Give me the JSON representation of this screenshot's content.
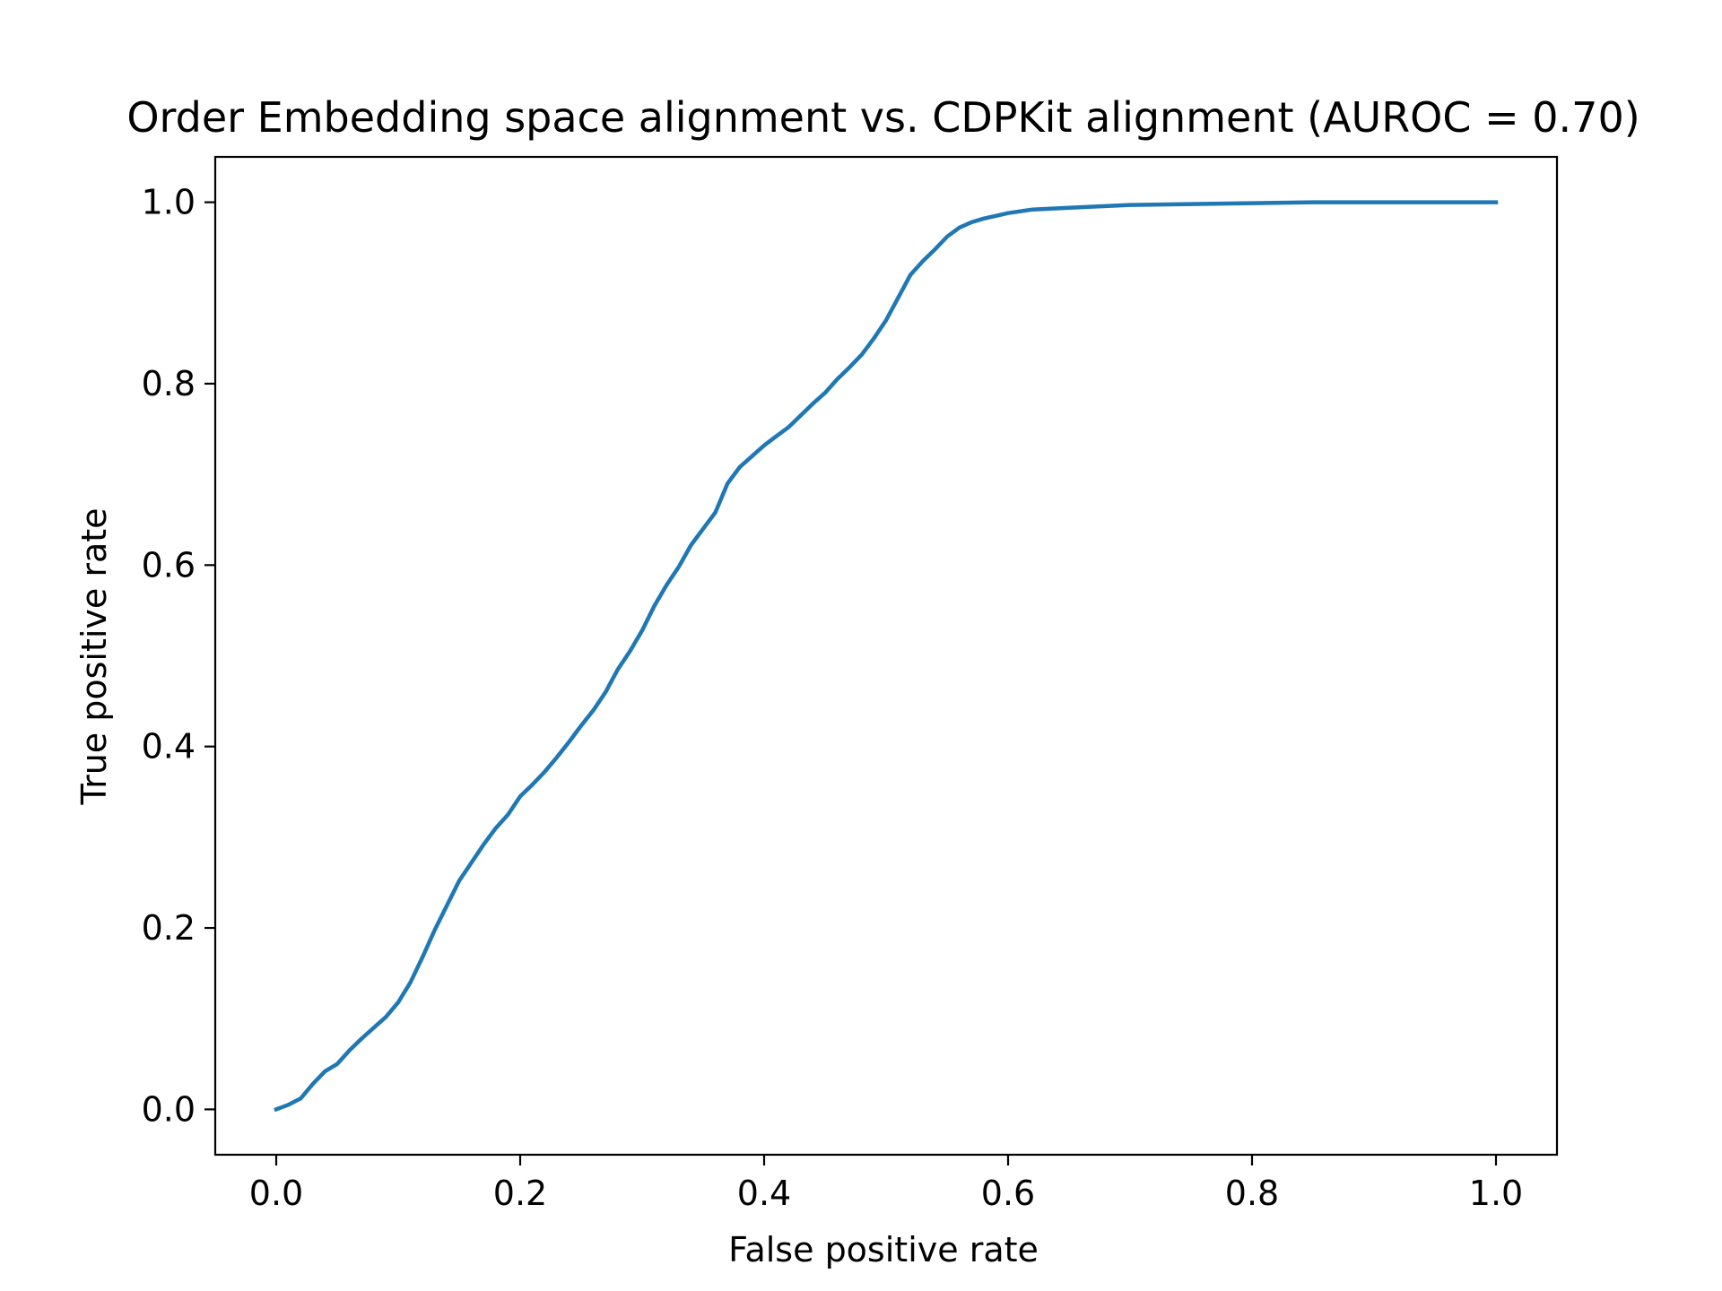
{
  "chart_data": {
    "type": "line",
    "title": "Order Embedding space alignment vs. CDPKit alignment (AUROC = 0.70)",
    "xlabel": "False positive rate",
    "ylabel": "True positive rate",
    "xlim": [
      -0.05,
      1.05
    ],
    "ylim": [
      -0.05,
      1.05
    ],
    "xticks": [
      "0.0",
      "0.2",
      "0.4",
      "0.6",
      "0.8",
      "1.0"
    ],
    "yticks": [
      "0.0",
      "0.2",
      "0.4",
      "0.6",
      "0.8",
      "1.0"
    ],
    "grid": false,
    "legend": "none",
    "series": [
      {
        "color": "#1f77b4",
        "x": [
          0.0,
          0.01,
          0.02,
          0.03,
          0.04,
          0.05,
          0.06,
          0.07,
          0.08,
          0.09,
          0.1,
          0.11,
          0.12,
          0.13,
          0.14,
          0.15,
          0.16,
          0.17,
          0.18,
          0.19,
          0.2,
          0.21,
          0.22,
          0.23,
          0.24,
          0.25,
          0.26,
          0.27,
          0.28,
          0.29,
          0.3,
          0.31,
          0.32,
          0.33,
          0.34,
          0.35,
          0.36,
          0.37,
          0.38,
          0.39,
          0.4,
          0.41,
          0.42,
          0.43,
          0.44,
          0.45,
          0.46,
          0.47,
          0.48,
          0.49,
          0.5,
          0.51,
          0.52,
          0.53,
          0.54,
          0.55,
          0.56,
          0.57,
          0.58,
          0.59,
          0.6,
          0.62,
          0.65,
          0.7,
          0.75,
          0.8,
          0.85,
          0.9,
          0.95,
          1.0
        ],
        "y": [
          0.0,
          0.005,
          0.012,
          0.028,
          0.042,
          0.05,
          0.065,
          0.078,
          0.09,
          0.102,
          0.118,
          0.14,
          0.168,
          0.198,
          0.225,
          0.252,
          0.272,
          0.292,
          0.31,
          0.325,
          0.345,
          0.358,
          0.372,
          0.388,
          0.405,
          0.423,
          0.44,
          0.46,
          0.485,
          0.505,
          0.528,
          0.555,
          0.578,
          0.598,
          0.622,
          0.64,
          0.658,
          0.69,
          0.708,
          0.72,
          0.732,
          0.742,
          0.752,
          0.765,
          0.778,
          0.79,
          0.805,
          0.818,
          0.832,
          0.85,
          0.87,
          0.895,
          0.92,
          0.935,
          0.948,
          0.962,
          0.972,
          0.978,
          0.982,
          0.985,
          0.988,
          0.992,
          0.994,
          0.997,
          0.998,
          0.999,
          1.0,
          1.0,
          1.0,
          1.0
        ]
      }
    ]
  }
}
